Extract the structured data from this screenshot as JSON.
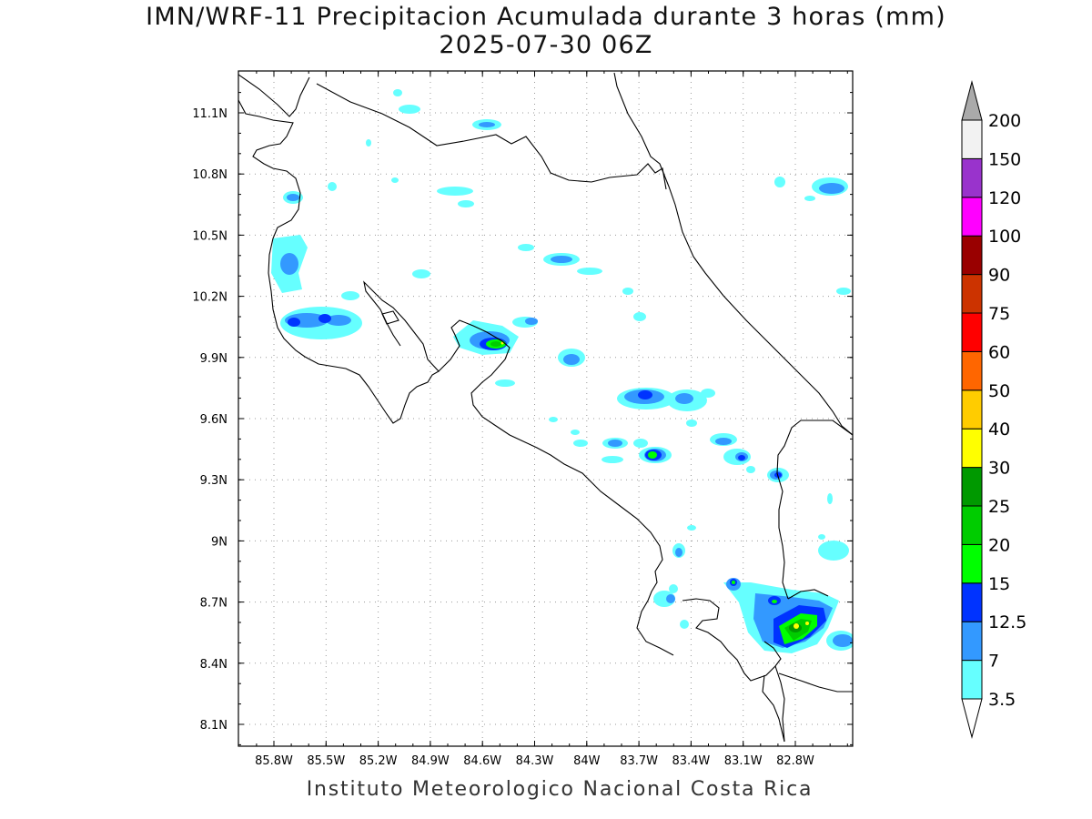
{
  "title": {
    "line1": "IMN/WRF-11 Precipitacion Acumulada durante 3 horas (mm)",
    "line2": "2025-07-30 06Z"
  },
  "credit": "Instituto Meteorologico Nacional Costa Rica",
  "axes": {
    "lon_ticks": [
      "85.8W",
      "85.5W",
      "85.2W",
      "84.9W",
      "84.6W",
      "84.3W",
      "84W",
      "83.7W",
      "83.4W",
      "83.1W",
      "82.8W"
    ],
    "lat_ticks": [
      "11.1N",
      "10.8N",
      "10.5N",
      "10.2N",
      "9.9N",
      "9.6N",
      "9.3N",
      "9N",
      "8.7N",
      "8.4N",
      "8.1N"
    ]
  },
  "colorbar": {
    "labels": [
      "3.5",
      "7",
      "12.5",
      "15",
      "20",
      "25",
      "30",
      "40",
      "50",
      "60",
      "75",
      "90",
      "100",
      "120",
      "150",
      "200"
    ],
    "colors": [
      "#66ffff",
      "#3399ff",
      "#0033ff",
      "#00ff00",
      "#00cc00",
      "#009900",
      "#ffff00",
      "#ffcc00",
      "#ff6600",
      "#ff0000",
      "#cc3300",
      "#990000",
      "#ff00ff",
      "#9933cc",
      "#f2f2f2",
      "#aaaaaa"
    ]
  }
}
